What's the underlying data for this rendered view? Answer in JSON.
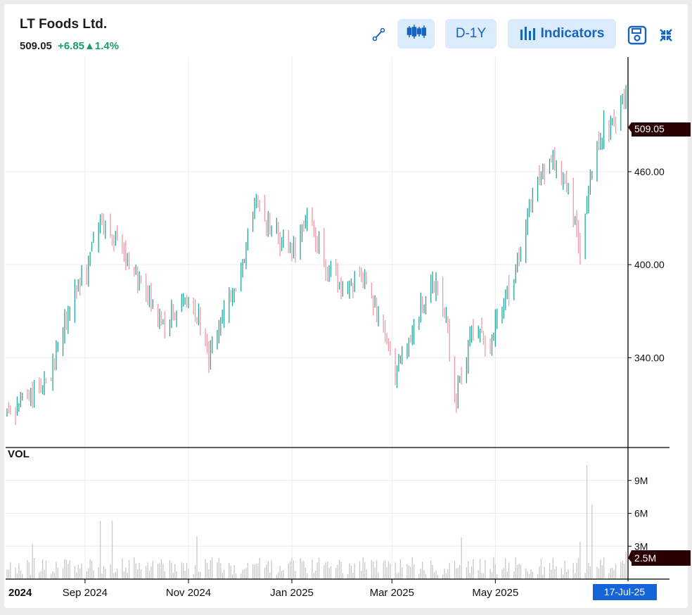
{
  "header": {
    "title": "LT Foods Ltd.",
    "price": "509.05",
    "change": "+6.85",
    "change_pct": "1.4%",
    "up_arrow": "▲"
  },
  "toolbar": {
    "draw_icon": "draw-line-icon",
    "candles_icon": "candlestick-icon",
    "range_label": "D-1Y",
    "indicators_label": "Indicators",
    "indicators_icon": "bar-chart-icon",
    "save_icon": "save-icon",
    "collapse_icon": "collapse-icon"
  },
  "colors": {
    "up": "#26a69a",
    "down": "#ef9aa6",
    "accent": "#1565c0",
    "button_bg": "#dcebfb",
    "price_tag_bg": "#2a0000",
    "date_tag_bg": "#1565d8"
  },
  "chart_data": {
    "type": "candlestick",
    "instrument": "LT Foods Ltd.",
    "period": "D-1Y",
    "price_axis": {
      "ticks": [
        340,
        400,
        460
      ],
      "tick_labels": [
        "340.00",
        "400.00",
        "460.00"
      ],
      "range": [
        282,
        534
      ]
    },
    "volume_axis": {
      "ticks": [
        3000000,
        6000000,
        9000000
      ],
      "tick_labels": [
        "3M",
        "6M",
        "9M"
      ],
      "range": [
        0,
        12000000
      ]
    },
    "volume_panel_label": "VOL",
    "x_axis": {
      "labels": [
        "2024",
        "Sep 2024",
        "Nov 2024",
        "Jan 2025",
        "Mar 2025",
        "May 2025"
      ],
      "label_dates": [
        "2024-07-19",
        "2024-09-01",
        "2024-11-01",
        "2025-01-01",
        "2025-03-01",
        "2025-05-01"
      ],
      "start": "2024-07-17",
      "end": "2025-07-17"
    },
    "last_price": "509.05",
    "last_volume": "2.5M",
    "last_date": "17-Jul-25",
    "grid": true,
    "approx_closes": [
      [
        "2024-07-17",
        305
      ],
      [
        "2024-07-31",
        315
      ],
      [
        "2024-08-12",
        330
      ],
      [
        "2024-08-22",
        368
      ],
      [
        "2024-09-02",
        398
      ],
      [
        "2024-09-10",
        430
      ],
      [
        "2024-09-24",
        405
      ],
      [
        "2024-10-07",
        382
      ],
      [
        "2024-10-18",
        362
      ],
      [
        "2024-10-30",
        375
      ],
      [
        "2024-11-07",
        368
      ],
      [
        "2024-11-13",
        338
      ],
      [
        "2024-11-22",
        370
      ],
      [
        "2024-12-03",
        400
      ],
      [
        "2024-12-11",
        440
      ],
      [
        "2024-12-24",
        418
      ],
      [
        "2025-01-03",
        405
      ],
      [
        "2025-01-09",
        432
      ],
      [
        "2025-01-20",
        402
      ],
      [
        "2025-01-31",
        385
      ],
      [
        "2025-02-10",
        395
      ],
      [
        "2025-02-17",
        382
      ],
      [
        "2025-02-25",
        350
      ],
      [
        "2025-03-03",
        326
      ],
      [
        "2025-03-17",
        370
      ],
      [
        "2025-03-27",
        388
      ],
      [
        "2025-04-02",
        365
      ],
      [
        "2025-04-07",
        308
      ],
      [
        "2025-04-17",
        358
      ],
      [
        "2025-04-28",
        350
      ],
      [
        "2025-05-12",
        392
      ],
      [
        "2025-05-22",
        440
      ],
      [
        "2025-06-02",
        470
      ],
      [
        "2025-06-13",
        452
      ],
      [
        "2025-06-20",
        405
      ],
      [
        "2025-06-27",
        465
      ],
      [
        "2025-07-04",
        488
      ],
      [
        "2025-07-11",
        490
      ],
      [
        "2025-07-17",
        509.05
      ]
    ],
    "volume_spikes_millions": [
      [
        "2024-08-01",
        3.2
      ],
      [
        "2024-09-10",
        5.3
      ],
      [
        "2024-09-17",
        5.3
      ],
      [
        "2024-11-06",
        3.9
      ],
      [
        "2025-04-11",
        3.8
      ],
      [
        "2025-06-20",
        3.4
      ],
      [
        "2025-06-24",
        10.4
      ],
      [
        "2025-06-27",
        6.8
      ]
    ]
  }
}
